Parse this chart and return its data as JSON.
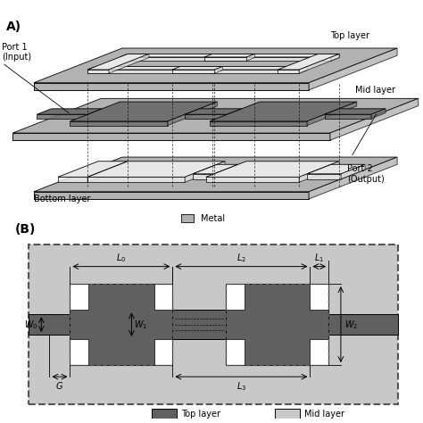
{
  "fig_bg": "#ffffff",
  "panel_A_label": "A)",
  "panel_B_label": "(B)",
  "top_layer_label": "Top layer",
  "mid_layer_label": "Mid layer",
  "bottom_layer_label": "Bottom layer",
  "port1_label": "Port 1\n(Input)",
  "port2_label": "Port 2\n(Output)",
  "metal_label": "Metal",
  "annot_labels": [
    "L₀",
    "L₂",
    "L₁",
    "W₀",
    "W₁",
    "W₂",
    "G",
    "L₃"
  ],
  "color_top": "#555555",
  "color_mid": "#c8c8c8",
  "color_bg_B": "#c8c8c8",
  "color_white": "#ffffff",
  "color_dashed": "#555555"
}
